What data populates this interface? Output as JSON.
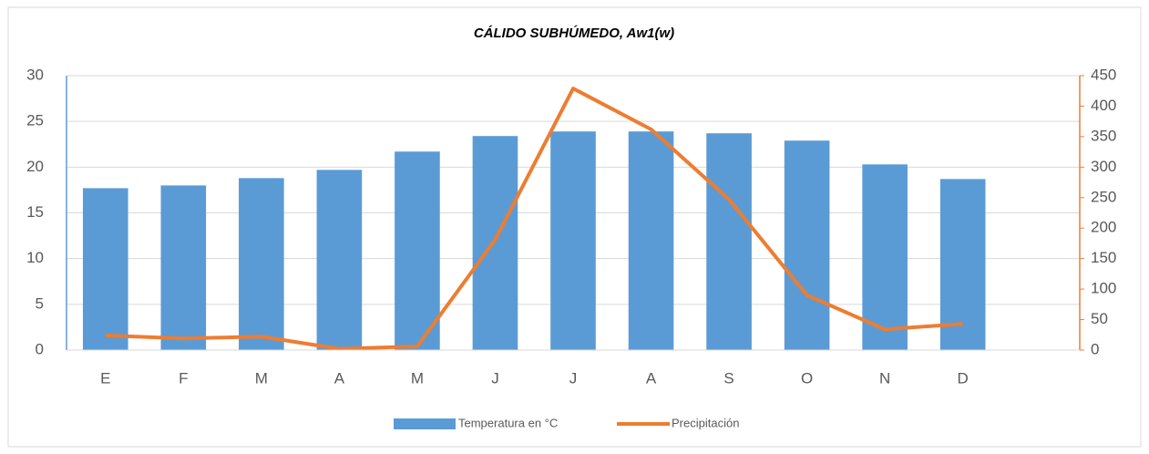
{
  "chart_data": {
    "type": "bar",
    "title": "CÁLIDO SUBHÚMEDO, Aw1(w)",
    "categories": [
      "E",
      "F",
      "M",
      "A",
      "M",
      "J",
      "J",
      "A",
      "S",
      "O",
      "N",
      "D",
      null
    ],
    "series": [
      {
        "name": "Temperatura en °C",
        "type": "bar",
        "color": "#5b9bd5",
        "values": [
          17.7,
          18.0,
          18.8,
          19.7,
          21.7,
          23.4,
          23.9,
          23.9,
          23.7,
          22.9,
          20.3,
          18.7,
          null
        ]
      },
      {
        "name": "Precipitación",
        "type": "line",
        "axis": "y2",
        "color": "#ed7d31",
        "values": [
          24,
          19,
          22,
          2,
          6,
          181,
          429,
          362,
          247,
          90,
          34,
          43,
          null
        ]
      }
    ],
    "ylim": [
      0,
      30
    ],
    "yticks": [
      0,
      5,
      10,
      15,
      20,
      25,
      30
    ],
    "y2lim": [
      0,
      450
    ],
    "y2ticks": [
      0,
      50,
      100,
      150,
      200,
      250,
      300,
      350,
      400,
      450
    ],
    "grid": true,
    "legend": "bottom"
  }
}
